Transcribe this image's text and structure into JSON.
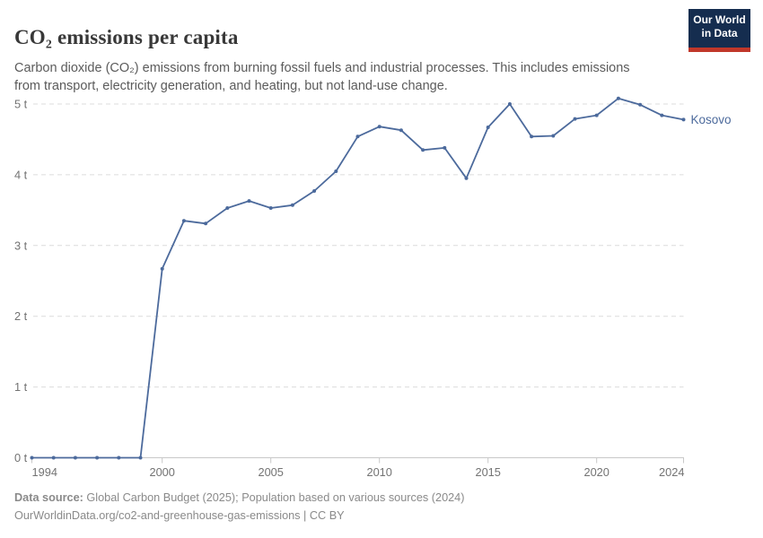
{
  "header": {
    "title": "CO₂ emissions per capita",
    "subtitle": "Carbon dioxide (CO₂) emissions from burning fossil fuels and industrial processes. This includes emissions from transport, electricity generation, and heating, but not land-use change.",
    "logo": {
      "line1": "Our World",
      "line2": "in Data"
    }
  },
  "chart_data": {
    "type": "line",
    "title": "CO₂ emissions per capita",
    "entity": "Kosovo",
    "unit": "t",
    "x": [
      1994,
      1995,
      1996,
      1997,
      1998,
      1999,
      2000,
      2001,
      2002,
      2003,
      2004,
      2005,
      2006,
      2007,
      2008,
      2009,
      2010,
      2011,
      2012,
      2013,
      2014,
      2015,
      2016,
      2017,
      2018,
      2019,
      2020,
      2021,
      2022,
      2023,
      2024
    ],
    "series": [
      {
        "name": "Kosovo",
        "color": "#4C6A9C",
        "values": [
          0,
          0,
          0,
          0,
          0,
          0,
          2.67,
          3.35,
          3.31,
          3.53,
          3.63,
          3.53,
          3.57,
          3.77,
          4.05,
          4.54,
          4.68,
          4.63,
          4.35,
          4.38,
          3.95,
          4.67,
          5.0,
          4.54,
          4.55,
          4.79,
          4.84,
          5.08,
          4.99,
          4.84,
          4.78
        ]
      }
    ],
    "xlim": [
      1994,
      2024
    ],
    "ylim": [
      0,
      5
    ],
    "xticks": [
      1994,
      2000,
      2005,
      2010,
      2015,
      2020,
      2024
    ],
    "yticks": [
      {
        "value": 0,
        "label": "0 t"
      },
      {
        "value": 1,
        "label": "1 t"
      },
      {
        "value": 2,
        "label": "2 t"
      },
      {
        "value": 3,
        "label": "3 t"
      },
      {
        "value": 4,
        "label": "4 t"
      },
      {
        "value": 5,
        "label": "5 t"
      }
    ],
    "grid": "horizontal-dashed",
    "legend_position": "end-of-line-label"
  },
  "footer": {
    "data_source_label": "Data source:",
    "data_source": "Global Carbon Budget (2025); Population based on various sources (2024)",
    "license_line": "OurWorldinData.org/co2-and-greenhouse-gas-emissions | CC BY"
  },
  "colors": {
    "series_blue": "#4C6A9C",
    "logo_navy": "#152d4f",
    "logo_red": "#c0372a",
    "gridline": "#dcdcdc",
    "axis": "#c8c8c8",
    "tick_label": "#737373",
    "title_text": "#383838",
    "subtitle_text": "#5b5b5b",
    "footer_text": "#8a8a8a"
  }
}
